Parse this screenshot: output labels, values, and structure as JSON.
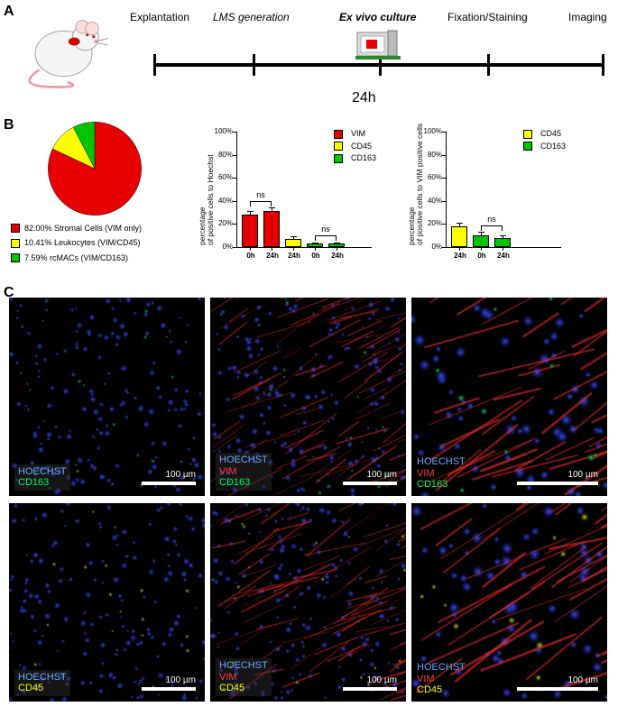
{
  "panelA": {
    "stages": [
      "Explantation",
      "LMS generation",
      "Ex vivo culture",
      "Fixation/Staining",
      "Imaging"
    ],
    "italic_flags": [
      false,
      true,
      true,
      false,
      false
    ],
    "time_label": "24h"
  },
  "panelB": {
    "pie": {
      "slices": [
        {
          "label": "82.00%  Stromal Cells (VIM only)",
          "value": 82.0,
          "color": "#e60000"
        },
        {
          "label": "10.41%  Leukocytes (VIM/CD45)",
          "value": 10.41,
          "color": "#ffff00"
        },
        {
          "label": "7.59%  rcMACs (VIM/CD163)",
          "value": 7.59,
          "color": "#00c400"
        }
      ],
      "start_angle_deg": -90
    },
    "chart1": {
      "ylabel": "percentage\nof positive cells to Hoechst",
      "ylim": [
        0,
        100
      ],
      "ytick_step": 20,
      "ytick_suffix": "%",
      "groups": [
        {
          "x": "0h",
          "series": "VIM",
          "value": 28,
          "err": 3,
          "color": "#e60000"
        },
        {
          "x": "24h",
          "series": "VIM",
          "value": 31,
          "err": 3,
          "color": "#e60000"
        },
        {
          "x": "24h",
          "series": "CD45",
          "value": 7,
          "err": 2,
          "color": "#ffff00"
        },
        {
          "x": "0h",
          "series": "CD163",
          "value": 3,
          "err": 1,
          "color": "#00c400"
        },
        {
          "x": "24h",
          "series": "CD163",
          "value": 3,
          "err": 1,
          "color": "#00c400"
        }
      ],
      "ns_pairs": [
        [
          0,
          1
        ],
        [
          3,
          4
        ]
      ],
      "legend": [
        {
          "label": "VIM",
          "color": "#e60000"
        },
        {
          "label": "CD45",
          "color": "#ffff00"
        },
        {
          "label": "CD163",
          "color": "#00c400"
        }
      ]
    },
    "chart2": {
      "ylabel": "percentage\nof positive cells to VIM positive cells",
      "ylim": [
        0,
        100
      ],
      "ytick_step": 20,
      "ytick_suffix": "%",
      "groups": [
        {
          "x": "24h",
          "series": "CD45",
          "value": 18,
          "err": 3,
          "color": "#ffff00"
        },
        {
          "x": "0h",
          "series": "CD163",
          "value": 10,
          "err": 3,
          "color": "#00c400"
        },
        {
          "x": "24h",
          "series": "CD163",
          "value": 8,
          "err": 2,
          "color": "#00c400"
        }
      ],
      "ns_pairs": [
        [
          1,
          2
        ]
      ],
      "legend": [
        {
          "label": "CD45",
          "color": "#ffff00"
        },
        {
          "label": "CD163",
          "color": "#00c400"
        }
      ]
    }
  },
  "panelC": {
    "rows": [
      {
        "marker": "CD163",
        "marker_color": "#00ff66",
        "cells_hue": "green"
      },
      {
        "marker": "CD45",
        "marker_color": "#ffff00",
        "cells_hue": "yellow"
      }
    ],
    "columns": [
      {
        "labels": [
          "HOECHST"
        ],
        "colors": [
          "#6aa9ff"
        ],
        "show_vim": false,
        "scale_text": "100 µm",
        "scale_w": 60
      },
      {
        "labels": [
          "HOECHST",
          "VIM"
        ],
        "colors": [
          "#6aa9ff",
          "#ff4040"
        ],
        "show_vim": true,
        "scale_text": "100 µm",
        "scale_w": 60
      },
      {
        "labels": [
          "HOECHST",
          "VIM"
        ],
        "colors": [
          "#6aa9ff",
          "#ff4040"
        ],
        "show_vim": true,
        "scale_text": "100 µm",
        "scale_w": 90,
        "zoom": true
      }
    ],
    "hoechst_color": "#2a3fd6",
    "vim_color": "#ff2a2a",
    "background": "#000000"
  }
}
